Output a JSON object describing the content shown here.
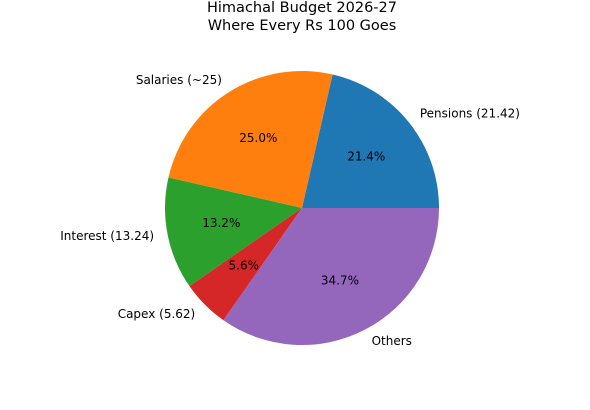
{
  "chart_data": {
    "type": "pie",
    "title_lines": [
      "Himachal Budget 2026-27",
      "Where Every Rs 100 Goes"
    ],
    "slices": [
      {
        "label": "Pensions (21.42)",
        "value": 21.42,
        "pct_label": "21.4%",
        "color": "#1f77b4"
      },
      {
        "label": "Salaries (~25)",
        "value": 25.0,
        "pct_label": "25.0%",
        "color": "#ff7f0e"
      },
      {
        "label": "Interest (13.24)",
        "value": 13.24,
        "pct_label": "13.2%",
        "color": "#2ca02c"
      },
      {
        "label": "Capex (5.62)",
        "value": 5.62,
        "pct_label": "5.6%",
        "color": "#d62728"
      },
      {
        "label": "Others",
        "value": 34.72,
        "pct_label": "34.7%",
        "color": "#9467bd"
      }
    ],
    "start_angle_deg": 0,
    "direction": "counterclockwise"
  }
}
